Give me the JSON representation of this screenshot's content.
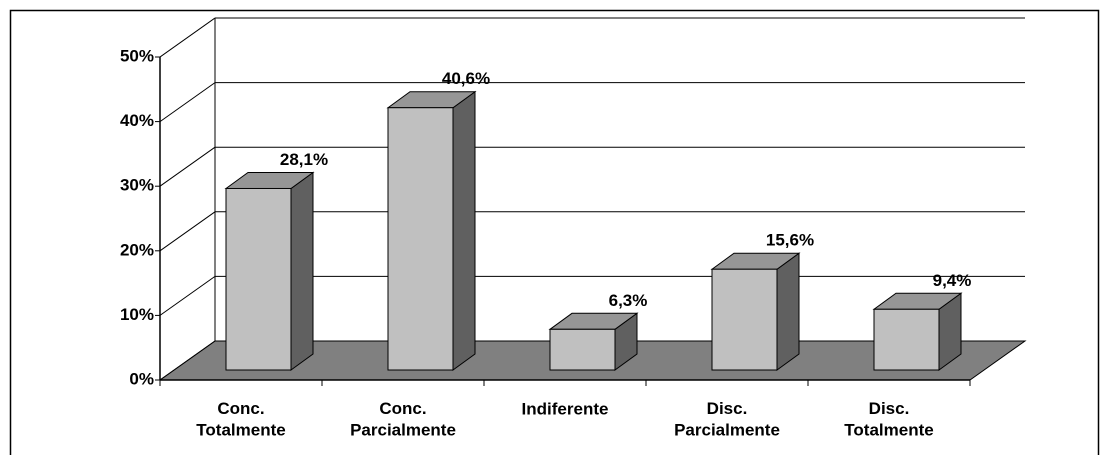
{
  "chart_data": {
    "type": "bar3d",
    "categories": [
      "Conc.\nTotalmente",
      "Conc.\nParcialmente",
      "Indiferente",
      "Disc.\nParcialmente",
      "Disc.\nTotalmente"
    ],
    "values": [
      28.1,
      40.6,
      6.3,
      15.6,
      9.4
    ],
    "value_labels": [
      "28,1%",
      "40,6%",
      "6,3%",
      "15,6%",
      "9,4%"
    ],
    "color": "#c0c0c0",
    "ylim": [
      0,
      50
    ],
    "yticks": [
      {
        "value": 0,
        "label": "0%"
      },
      {
        "value": 10,
        "label": "10%"
      },
      {
        "value": 20,
        "label": "20%"
      },
      {
        "value": 30,
        "label": "30%"
      },
      {
        "value": 40,
        "label": "40%"
      },
      {
        "value": 50,
        "label": "50%"
      }
    ],
    "grid": true
  }
}
